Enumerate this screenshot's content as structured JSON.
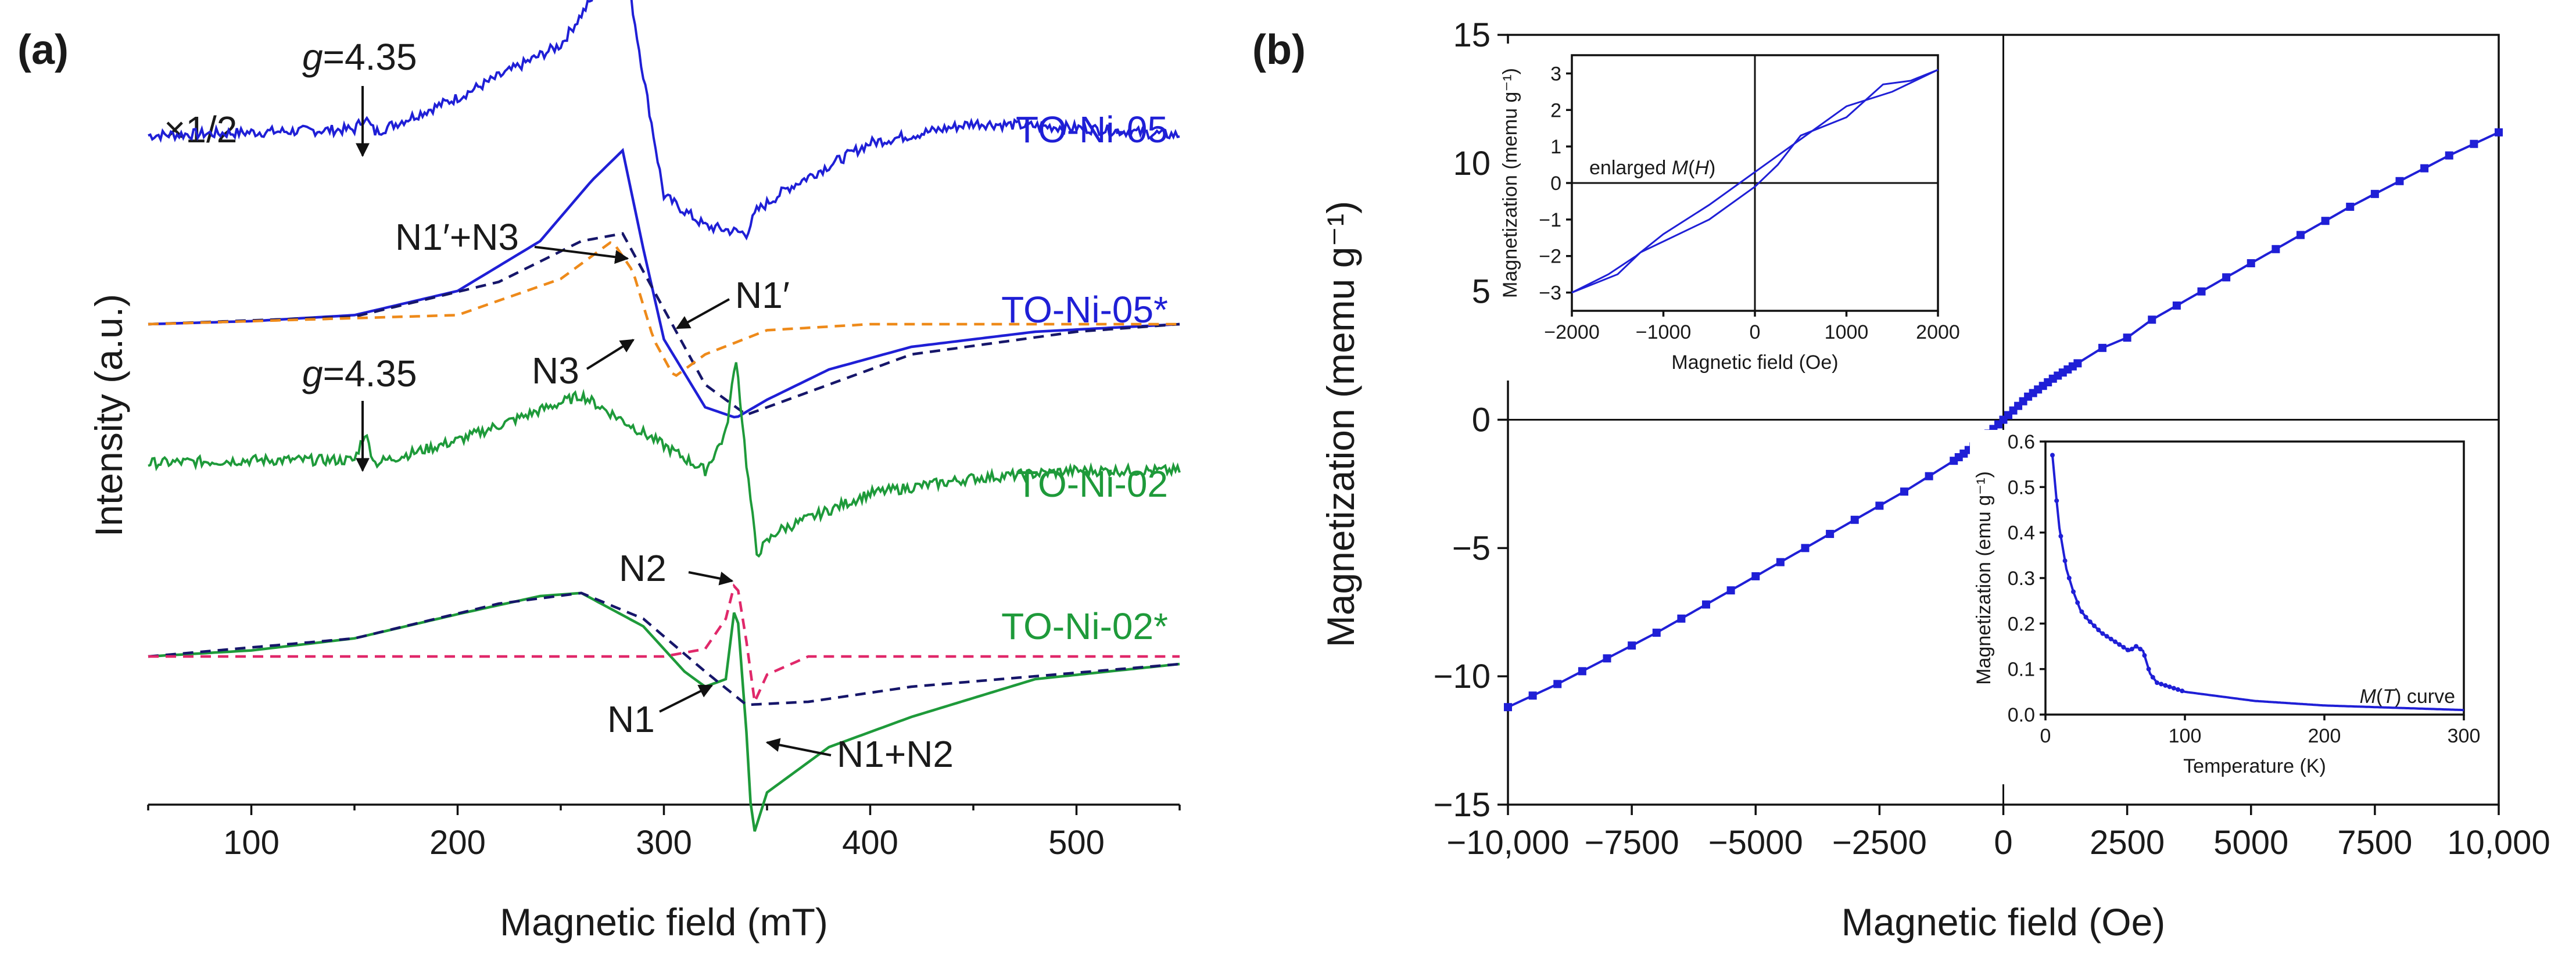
{
  "chart_data": [
    {
      "panel": "(a)",
      "type": "line",
      "title": "",
      "xlabel": "Magnetic field (mT)",
      "ylabel": "Intensity (a.u.)",
      "xlim": [
        50,
        550
      ],
      "xticks": [
        100,
        200,
        300,
        400,
        500
      ],
      "scale_note": "×1/2",
      "series": [
        {
          "name": "TO-Ni-05",
          "style": "solid",
          "color": "#1f1fd6",
          "noisy": true,
          "offset": 3.45,
          "points": [
            [
              50,
              0
            ],
            [
              100,
              0.02
            ],
            [
              150,
              0.04
            ],
            [
              155,
              0.12
            ],
            [
              160,
              0.02
            ],
            [
              200,
              0.25
            ],
            [
              250,
              0.6
            ],
            [
              270,
              1.0
            ],
            [
              280,
              1.25
            ],
            [
              290,
              0.4
            ],
            [
              300,
              -0.4
            ],
            [
              320,
              -0.6
            ],
            [
              340,
              -0.65
            ],
            [
              345,
              -0.5
            ],
            [
              360,
              -0.35
            ],
            [
              400,
              -0.05
            ],
            [
              450,
              0.08
            ],
            [
              500,
              0.05
            ],
            [
              550,
              0.0
            ]
          ]
        },
        {
          "name": "TO-Ni-05*",
          "style": "solid",
          "color": "#1f1fd6",
          "noisy": false,
          "offset": 2.2,
          "points": [
            [
              50,
              0
            ],
            [
              100,
              0.02
            ],
            [
              150,
              0.06
            ],
            [
              200,
              0.22
            ],
            [
              240,
              0.55
            ],
            [
              265,
              0.95
            ],
            [
              280,
              1.15
            ],
            [
              290,
              0.5
            ],
            [
              300,
              -0.1
            ],
            [
              320,
              -0.55
            ],
            [
              335,
              -0.62
            ],
            [
              350,
              -0.5
            ],
            [
              380,
              -0.3
            ],
            [
              420,
              -0.15
            ],
            [
              480,
              -0.05
            ],
            [
              550,
              0.0
            ]
          ]
        },
        {
          "name": "N1′",
          "style": "dashed",
          "color": "#16166a",
          "noisy": false,
          "offset": 2.2,
          "points": [
            [
              50,
              0
            ],
            [
              150,
              0.05
            ],
            [
              220,
              0.28
            ],
            [
              260,
              0.55
            ],
            [
              280,
              0.6
            ],
            [
              300,
              0.1
            ],
            [
              320,
              -0.4
            ],
            [
              340,
              -0.6
            ],
            [
              370,
              -0.45
            ],
            [
              420,
              -0.2
            ],
            [
              500,
              -0.05
            ],
            [
              550,
              0
            ]
          ]
        },
        {
          "name": "N3",
          "style": "dashed",
          "color": "#ee8a1a",
          "noisy": false,
          "offset": 2.2,
          "points": [
            [
              50,
              0
            ],
            [
              200,
              0.06
            ],
            [
              250,
              0.3
            ],
            [
              275,
              0.55
            ],
            [
              285,
              0.35
            ],
            [
              295,
              -0.1
            ],
            [
              305,
              -0.35
            ],
            [
              320,
              -0.2
            ],
            [
              350,
              -0.04
            ],
            [
              400,
              0
            ],
            [
              550,
              0
            ]
          ]
        },
        {
          "name": "TO-Ni-02",
          "style": "solid",
          "color": "#1e9a3a",
          "noisy": true,
          "offset": 1.28,
          "points": [
            [
              50,
              0
            ],
            [
              100,
              0.02
            ],
            [
              150,
              0.02
            ],
            [
              155,
              0.2
            ],
            [
              160,
              0.0
            ],
            [
              200,
              0.15
            ],
            [
              250,
              0.4
            ],
            [
              260,
              0.45
            ],
            [
              290,
              0.2
            ],
            [
              320,
              -0.05
            ],
            [
              330,
              0.2
            ],
            [
              335,
              0.7
            ],
            [
              340,
              0.0
            ],
            [
              345,
              -0.6
            ],
            [
              355,
              -0.45
            ],
            [
              400,
              -0.2
            ],
            [
              450,
              -0.1
            ],
            [
              500,
              -0.05
            ],
            [
              550,
              -0.05
            ]
          ]
        },
        {
          "name": "TO-Ni-02*",
          "style": "solid",
          "color": "#1e9a3a",
          "noisy": false,
          "offset": 0.0,
          "points": [
            [
              50,
              0
            ],
            [
              100,
              0.04
            ],
            [
              150,
              0.12
            ],
            [
              200,
              0.28
            ],
            [
              240,
              0.4
            ],
            [
              260,
              0.42
            ],
            [
              290,
              0.2
            ],
            [
              310,
              -0.1
            ],
            [
              320,
              -0.2
            ],
            [
              330,
              -0.15
            ],
            [
              335,
              0.4
            ],
            [
              340,
              -0.5
            ],
            [
              343,
              -1.2
            ],
            [
              350,
              -0.9
            ],
            [
              380,
              -0.6
            ],
            [
              420,
              -0.4
            ],
            [
              480,
              -0.15
            ],
            [
              550,
              -0.05
            ]
          ]
        },
        {
          "name": "N1",
          "style": "dashed",
          "color": "#16166a",
          "noisy": false,
          "offset": 0.0,
          "points": [
            [
              50,
              0
            ],
            [
              150,
              0.12
            ],
            [
              220,
              0.35
            ],
            [
              260,
              0.42
            ],
            [
              290,
              0.25
            ],
            [
              320,
              -0.1
            ],
            [
              340,
              -0.32
            ],
            [
              370,
              -0.3
            ],
            [
              420,
              -0.2
            ],
            [
              550,
              -0.05
            ]
          ]
        },
        {
          "name": "N2",
          "style": "dashed",
          "color": "#e0286a",
          "noisy": false,
          "offset": 0.0,
          "points": [
            [
              50,
              0
            ],
            [
              300,
              0
            ],
            [
              320,
              0.05
            ],
            [
              330,
              0.25
            ],
            [
              335,
              0.52
            ],
            [
              340,
              0.1
            ],
            [
              344,
              -0.3
            ],
            [
              350,
              -0.12
            ],
            [
              370,
              0
            ],
            [
              550,
              0
            ]
          ]
        }
      ],
      "annotations": [
        {
          "text": "g=4.35",
          "x": 157,
          "target": "TO-Ni-05"
        },
        {
          "text": "g=4.35",
          "x": 157,
          "target": "TO-Ni-02"
        },
        {
          "text": "N1′+N3"
        },
        {
          "text": "N1′"
        },
        {
          "text": "N3"
        },
        {
          "text": "N2"
        },
        {
          "text": "N1"
        },
        {
          "text": "N1+N2"
        }
      ]
    },
    {
      "panel": "(b)",
      "type": "scatter",
      "title": "",
      "xlabel": "Magnetic field (Oe)",
      "ylabel": "Magnetization (memu g⁻¹)",
      "xlim": [
        -10000,
        10000
      ],
      "ylim": [
        -15,
        15
      ],
      "xticks": [
        -10000,
        -7500,
        -5000,
        -2500,
        0,
        2500,
        5000,
        7500,
        10000
      ],
      "xticklabels": [
        "−10,000",
        "−7500",
        "−5000",
        "−2500",
        "0",
        "2500",
        "5000",
        "7500",
        "10,000"
      ],
      "yticks": [
        -15,
        -10,
        -5,
        0,
        5,
        10,
        15
      ],
      "yticklabels": [
        "−15",
        "−10",
        "−5",
        "0",
        "5",
        "10",
        "15"
      ],
      "color": "#1f1fd6",
      "series": [
        {
          "name": "M(H)",
          "points": [
            [
              -10000,
              -11.2
            ],
            [
              -9000,
              -10.3
            ],
            [
              -8000,
              -9.3
            ],
            [
              -7000,
              -8.3
            ],
            [
              -6000,
              -7.2
            ],
            [
              -5000,
              -6.1
            ],
            [
              -4000,
              -5.0
            ],
            [
              -3000,
              -3.9
            ],
            [
              -2000,
              -2.8
            ],
            [
              -1500,
              -2.2
            ],
            [
              -1000,
              -1.6
            ],
            [
              -500,
              -0.9
            ],
            [
              0,
              0
            ],
            [
              500,
              0.9
            ],
            [
              1000,
              1.6
            ],
            [
              1500,
              2.2
            ],
            [
              2000,
              2.8
            ],
            [
              2500,
              3.2
            ],
            [
              3000,
              3.9
            ],
            [
              4000,
              5.0
            ],
            [
              5000,
              6.1
            ],
            [
              6000,
              7.2
            ],
            [
              7000,
              8.3
            ],
            [
              8000,
              9.3
            ],
            [
              9000,
              10.3
            ],
            [
              10000,
              11.2
            ]
          ]
        }
      ],
      "insets": [
        {
          "name": "enlarged M(H)",
          "label": "enlarged M(H)",
          "xlabel": "Magnetic field (Oe)",
          "ylabel": "Magnetization (memu g⁻¹)",
          "xlim": [
            -2000,
            2000
          ],
          "ylim": [
            -3.5,
            3.5
          ],
          "xticks": [
            -2000,
            -1000,
            0,
            1000,
            2000
          ],
          "xticklabels": [
            "−2000",
            "−1000",
            "0",
            "1000",
            "2000"
          ],
          "yticks": [
            -3,
            -2,
            -1,
            0,
            1,
            2,
            3
          ],
          "yticklabels": [
            "−3",
            "−2",
            "−1",
            "0",
            "1",
            "2",
            "3"
          ],
          "branch_up": [
            [
              -2000,
              -3.0
            ],
            [
              -1500,
              -2.5
            ],
            [
              -1250,
              -1.9
            ],
            [
              -1000,
              -1.6
            ],
            [
              -500,
              -1.0
            ],
            [
              0,
              -0.1
            ],
            [
              250,
              0.5
            ],
            [
              500,
              1.3
            ],
            [
              1000,
              1.8
            ],
            [
              1400,
              2.7
            ],
            [
              1700,
              2.8
            ],
            [
              2000,
              3.1
            ]
          ],
          "branch_down": [
            [
              2000,
              3.1
            ],
            [
              1500,
              2.5
            ],
            [
              1000,
              2.1
            ],
            [
              500,
              1.2
            ],
            [
              0,
              0.3
            ],
            [
              -500,
              -0.6
            ],
            [
              -1000,
              -1.4
            ],
            [
              -1300,
              -2.0
            ],
            [
              -1600,
              -2.5
            ],
            [
              -2000,
              -3.0
            ]
          ]
        },
        {
          "name": "M(T) curve",
          "label": "M(T) curve",
          "xlabel": "Temperature (K)",
          "ylabel": "Magnetization (emu g⁻¹)",
          "xlim": [
            0,
            300
          ],
          "ylim": [
            0,
            0.6
          ],
          "xticks": [
            0,
            100,
            200,
            300
          ],
          "xticklabels": [
            "0",
            "100",
            "200",
            "300"
          ],
          "yticks": [
            0,
            0.1,
            0.2,
            0.3,
            0.4,
            0.5,
            0.6
          ],
          "yticklabels": [
            "0.0",
            "0.1",
            "0.2",
            "0.3",
            "0.4",
            "0.5",
            "0.6"
          ],
          "points": [
            [
              5,
              0.57
            ],
            [
              8,
              0.47
            ],
            [
              10,
              0.41
            ],
            [
              15,
              0.32
            ],
            [
              20,
              0.27
            ],
            [
              25,
              0.23
            ],
            [
              30,
              0.21
            ],
            [
              40,
              0.18
            ],
            [
              50,
              0.16
            ],
            [
              60,
              0.14
            ],
            [
              65,
              0.15
            ],
            [
              70,
              0.14
            ],
            [
              75,
              0.09
            ],
            [
              80,
              0.07
            ],
            [
              100,
              0.05
            ],
            [
              150,
              0.03
            ],
            [
              200,
              0.02
            ],
            [
              250,
              0.015
            ],
            [
              300,
              0.01
            ]
          ]
        }
      ]
    }
  ]
}
